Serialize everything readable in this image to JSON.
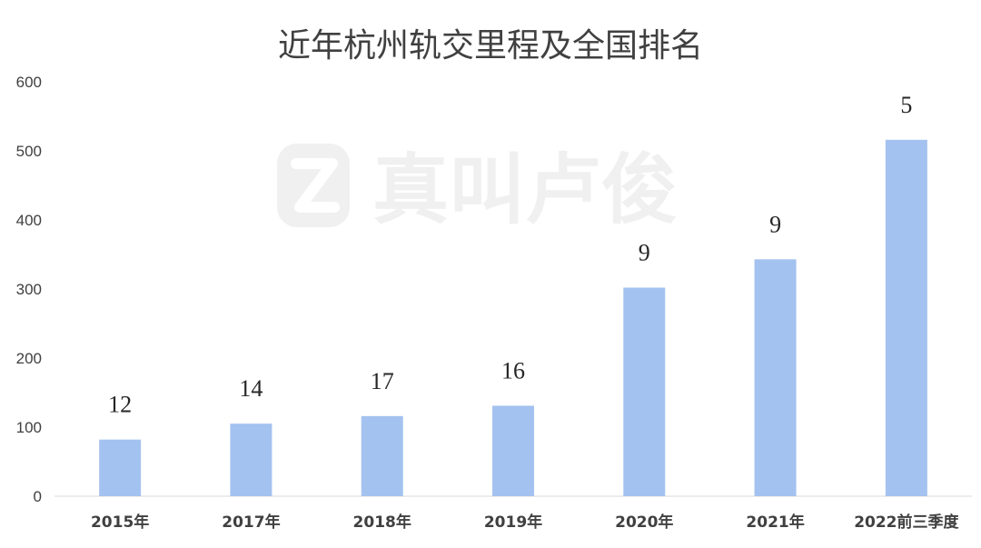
{
  "chart_data": {
    "type": "bar",
    "title": "近年杭州轨交里程及全国排名",
    "xlabel": "",
    "ylabel": "",
    "categories": [
      "2015年",
      "2017年",
      "2018年",
      "2019年",
      "2020年",
      "2021年",
      "2022前三季度"
    ],
    "series": [
      {
        "values": [
          82,
          105,
          116,
          131,
          302,
          343,
          516
        ],
        "labels": [
          "12",
          "14",
          "17",
          "16",
          "9",
          "9",
          "5"
        ]
      }
    ],
    "ylim": [
      0,
      600
    ],
    "yticks": [
      0,
      100,
      200,
      300,
      400,
      500,
      600
    ],
    "grid": false,
    "legend": "none"
  },
  "colors": {
    "bar": "#a4c2ef",
    "axis": "#d9d9d9",
    "text": "#404040",
    "watermark": "#f0f0f0"
  },
  "watermark": {
    "text": "真叫卢俊",
    "icon": "z-logo-icon"
  }
}
